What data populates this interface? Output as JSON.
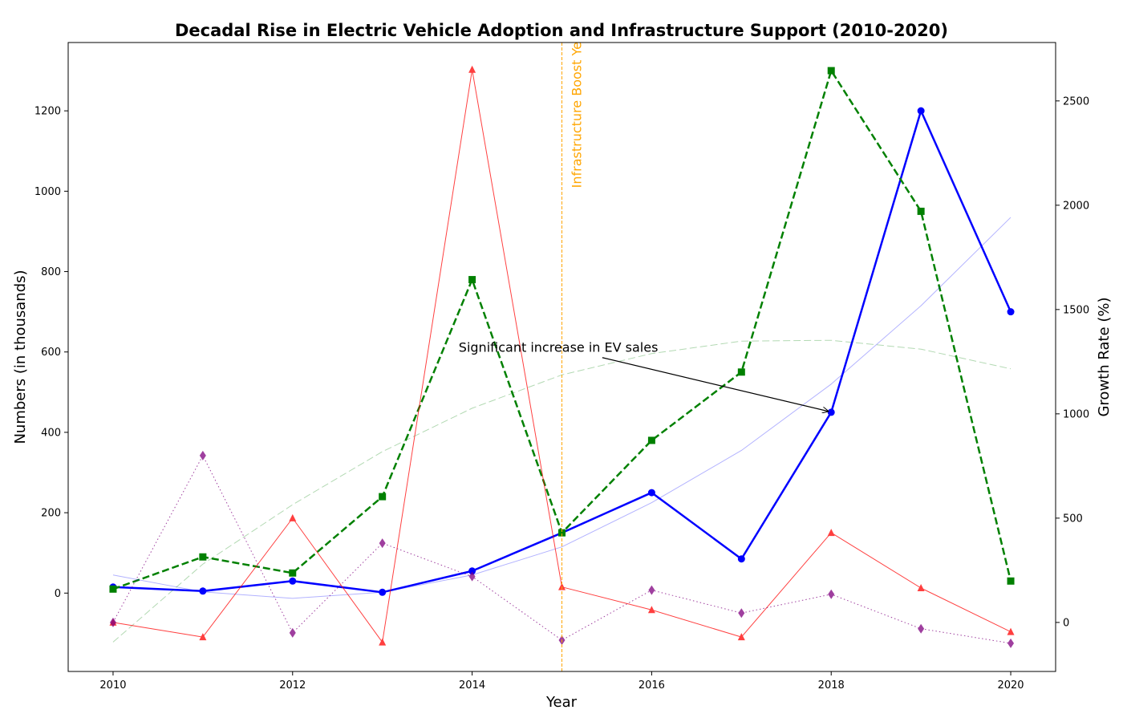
{
  "chart_data": {
    "type": "line",
    "title": "Decadal Rise in Electric Vehicle Adoption and Infrastructure Support (2010-2020)",
    "xlabel": "Year",
    "ylabel_left": "Numbers (in thousands)",
    "ylabel_right": "Growth Rate (%)",
    "xlim": [
      2009.5,
      2020.5
    ],
    "ylim_left": [
      -195,
      1370
    ],
    "ylim_right": [
      -235,
      2780
    ],
    "x_ticks": [
      2010,
      2012,
      2014,
      2016,
      2018,
      2020
    ],
    "y_ticks_left": [
      0,
      200,
      400,
      600,
      800,
      1000,
      1200
    ],
    "y_ticks_right": [
      0,
      500,
      1000,
      1500,
      2000,
      2500
    ],
    "grid": false,
    "x": [
      2010,
      2011,
      2012,
      2013,
      2014,
      2015,
      2016,
      2017,
      2018,
      2019,
      2020
    ],
    "series": [
      {
        "axis": "left",
        "color": "#0000ff",
        "style": "solid",
        "width": 2.5,
        "marker": "circle",
        "values": [
          15,
          5,
          30,
          2,
          55,
          150,
          250,
          85,
          450,
          1200,
          700
        ]
      },
      {
        "axis": "left",
        "color": "#008000",
        "style": "dashed",
        "width": 2.5,
        "marker": "square",
        "values": [
          10,
          90,
          50,
          240,
          780,
          150,
          380,
          550,
          1300,
          950,
          30
        ]
      },
      {
        "axis": "left",
        "color": "#0000ff",
        "style": "solid",
        "width": 1,
        "opacity": 0.3,
        "marker": "none",
        "values": [
          45,
          3,
          -13,
          2,
          45,
          115,
          225,
          355,
          520,
          715,
          935
        ]
      },
      {
        "axis": "left",
        "color": "#008000",
        "style": "dashed",
        "width": 1,
        "opacity": 0.3,
        "marker": "none",
        "values": [
          -122,
          72,
          220,
          352,
          460,
          543,
          596,
          627,
          629,
          607,
          558
        ]
      },
      {
        "axis": "right",
        "color": "#ff0000",
        "style": "solid",
        "width": 1,
        "opacity": 0.75,
        "marker": "triangle",
        "values": [
          0,
          -70,
          500,
          -95,
          2650,
          170,
          60,
          -70,
          430,
          165,
          -45
        ]
      },
      {
        "axis": "right",
        "color": "#800080",
        "style": "dotted",
        "width": 1,
        "opacity": 0.75,
        "marker": "diamond",
        "values": [
          0,
          800,
          -50,
          380,
          220,
          -85,
          155,
          45,
          135,
          -30,
          -100
        ]
      }
    ],
    "vline": {
      "x": 2015,
      "color": "#ffa500",
      "label": "Infrastructure Boost Year"
    },
    "annotation": {
      "text": "Significant increase in EV sales",
      "text_x": 2013.85,
      "text_y": 600,
      "arrow_x": 2018,
      "arrow_y": 450
    }
  }
}
